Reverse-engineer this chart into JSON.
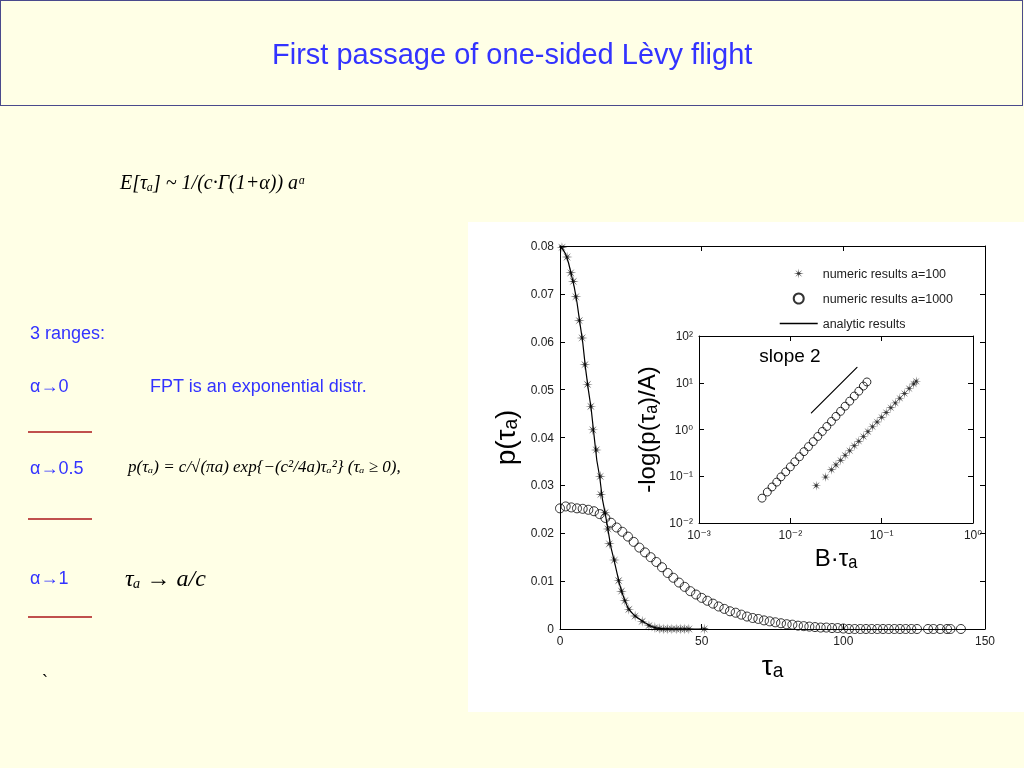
{
  "chart_data": [
    {
      "type": "other",
      "title": "First passage of one-sided Lèvy flight",
      "annotations": [
        "E[τₐ] ~ 1/(c·Γ(1+α)) aᵅ",
        "3 ranges:",
        "α→0",
        "FPT is an exponential distr.",
        "α→0.5",
        "p(τₐ) = c/√(πa) exp{−(c²/4a)τₐ²}  (τₐ ≥ 0),",
        "α→1",
        "τₐ → a/c",
        "`"
      ]
    },
    {
      "type": "scatter",
      "xlabel": "τₐ",
      "ylabel": "p(τₐ)",
      "xlim": [
        0,
        150
      ],
      "xticks": [
        0,
        50,
        100,
        150
      ],
      "ylim": [
        0,
        0.08
      ],
      "yticks": [
        0,
        0.01,
        0.02,
        0.03,
        0.04,
        0.05,
        0.06,
        0.07,
        0.08
      ],
      "grid": false,
      "legend": "top right",
      "series": [
        {
          "name": "numeric results a=100",
          "type": "scatter",
          "marker": "star",
          "color": "#000000",
          "x": [
            0.7,
            2.5,
            3.8,
            4.7,
            5.6,
            6.8,
            7.8,
            8.8,
            9.7,
            10.9,
            11.6,
            12.8,
            14.2,
            14.4,
            15.9,
            16.9,
            17.4,
            19.2,
            20.7,
            21.7,
            22.9,
            24.3,
            26.5,
            29.0,
            31.4,
            33.5,
            35,
            36.5,
            38,
            39.5,
            41,
            42.5,
            44,
            45.5,
            50.9
          ],
          "values": [
            0.0797,
            0.0777,
            0.0744,
            0.0726,
            0.0694,
            0.0644,
            0.0608,
            0.0552,
            0.0511,
            0.0465,
            0.0416,
            0.0374,
            0.0319,
            0.0281,
            0.0243,
            0.0209,
            0.0178,
            0.0144,
            0.0101,
            0.0079,
            0.0059,
            0.0041,
            0.0027,
            0.0016,
            0.0007,
            0.0003,
            0.0001,
            0,
            0,
            0,
            0,
            0,
            0,
            0,
            0
          ]
        },
        {
          "name": "numeric results a=1000",
          "type": "scatter",
          "marker": "circle",
          "color": "#000000",
          "x": [
            0,
            2,
            4,
            6,
            8,
            10,
            12,
            14,
            16,
            18,
            20,
            22,
            24,
            26,
            28,
            30,
            32,
            34,
            36,
            38,
            40,
            42,
            44,
            46,
            48,
            50,
            52,
            54,
            56,
            58,
            60,
            62,
            64,
            66,
            68,
            70,
            72,
            74,
            76,
            78,
            80,
            82,
            84,
            86,
            88,
            90,
            92,
            94,
            96,
            98,
            100,
            102,
            104,
            106,
            108,
            110,
            112,
            114,
            116,
            118,
            120,
            122,
            124,
            126,
            129.9,
            131.8,
            134.2,
            136.6,
            137.8,
            141.5
          ],
          "values": [
            0.0252,
            0.0256,
            0.0254,
            0.0252,
            0.0251,
            0.0249,
            0.0246,
            0.024,
            0.0232,
            0.0222,
            0.0212,
            0.0203,
            0.0193,
            0.0182,
            0.017,
            0.016,
            0.015,
            0.014,
            0.0129,
            0.0117,
            0.0107,
            0.0097,
            0.0088,
            0.0079,
            0.0072,
            0.0065,
            0.0059,
            0.0053,
            0.0047,
            0.0042,
            0.0037,
            0.0034,
            0.003,
            0.0026,
            0.0023,
            0.0021,
            0.0018,
            0.0016,
            0.0014,
            0.0012,
            0.001,
            0.0009,
            0.0007,
            0.0006,
            0.0005,
            0.0004,
            0.0003,
            0.0003,
            0.0002,
            0.0002,
            0.0001,
            0,
            0,
            0,
            0,
            0,
            0,
            0,
            0,
            0,
            0,
            0,
            0,
            0,
            0,
            0,
            0,
            0,
            0,
            0
          ]
        },
        {
          "name": "analytic results",
          "type": "line",
          "marker": "none",
          "line_style": "solid",
          "color": "#000000",
          "x": [
            0,
            1,
            2,
            3,
            4,
            5,
            6,
            7,
            8,
            9,
            10,
            11,
            12,
            13,
            14,
            15,
            16,
            17,
            18,
            19,
            20,
            21,
            22,
            23,
            24,
            25,
            26,
            27,
            28,
            30,
            32,
            34,
            36,
            40,
            52
          ],
          "values": [
            0.08,
            0.0793,
            0.0783,
            0.0765,
            0.074,
            0.0715,
            0.0682,
            0.064,
            0.06,
            0.0545,
            0.05,
            0.046,
            0.0405,
            0.0352,
            0.0318,
            0.027,
            0.024,
            0.0205,
            0.017,
            0.0146,
            0.012,
            0.0094,
            0.0074,
            0.0058,
            0.0044,
            0.0036,
            0.003,
            0.0025,
            0.0021,
            0.0013,
            0.0006,
            0.0002,
            0.0001,
            0,
            0
          ]
        }
      ]
    },
    {
      "type": "scatter",
      "xlabel": "B·τₐ",
      "ylabel": "-log(p(τₐ)/A)",
      "log": "xy",
      "grid": false,
      "xlim": [
        0.001,
        1
      ],
      "xticks": [
        {
          "value": 0.001,
          "label": "10⁻³"
        },
        {
          "value": 0.01,
          "label": "10⁻²"
        },
        {
          "value": 0.1,
          "label": "10⁻¹"
        },
        {
          "value": 1,
          "label": "10⁰"
        }
      ],
      "ylim": [
        0.01,
        100
      ],
      "yticks": [
        {
          "value": 0.01,
          "label": "10⁻²"
        },
        {
          "value": 0.1,
          "label": "10⁻¹"
        },
        {
          "value": 1,
          "label": "10⁰"
        },
        {
          "value": 10,
          "label": "10¹"
        },
        {
          "value": 100,
          "label": "10²"
        }
      ],
      "annotations": [
        "slope 2"
      ],
      "series": [
        {
          "type": "scatter",
          "marker": "star",
          "color": "#000000",
          "x": [
            0.0192,
            0.0243,
            0.0282,
            0.0316,
            0.0355,
            0.0398,
            0.0447,
            0.0501,
            0.0562,
            0.0631,
            0.0708,
            0.0794,
            0.0891,
            0.1,
            0.112,
            0.126,
            0.141,
            0.158,
            0.178,
            0.2,
            0.224,
            0.239
          ],
          "values": [
            0.063,
            0.096,
            0.138,
            0.175,
            0.22,
            0.28,
            0.35,
            0.45,
            0.56,
            0.71,
            0.9,
            1.14,
            1.45,
            1.83,
            2.31,
            2.92,
            3.7,
            4.68,
            5.9,
            7.5,
            9.4,
            10.8
          ]
        },
        {
          "type": "scatter",
          "marker": "circle",
          "color": "#000000",
          "x": [
            0.0049,
            0.0056,
            0.0063,
            0.0071,
            0.0079,
            0.0089,
            0.01,
            0.0112,
            0.0126,
            0.0141,
            0.0158,
            0.0178,
            0.02,
            0.0224,
            0.0251,
            0.0282,
            0.0316,
            0.0355,
            0.0398,
            0.0447,
            0.0501,
            0.0562,
            0.0631,
            0.069
          ],
          "values": [
            0.034,
            0.046,
            0.059,
            0.075,
            0.097,
            0.124,
            0.159,
            0.204,
            0.262,
            0.336,
            0.43,
            0.55,
            0.71,
            0.91,
            1.16,
            1.49,
            1.91,
            2.45,
            3.15,
            4.04,
            5.2,
            6.6,
            8.5,
            10.4
          ]
        },
        {
          "type": "line",
          "marker": "none",
          "line_style": "solid",
          "color": "#000000",
          "x": [
            0.017,
            0.0537
          ],
          "values": [
            2.26,
            21.3
          ]
        }
      ]
    }
  ]
}
